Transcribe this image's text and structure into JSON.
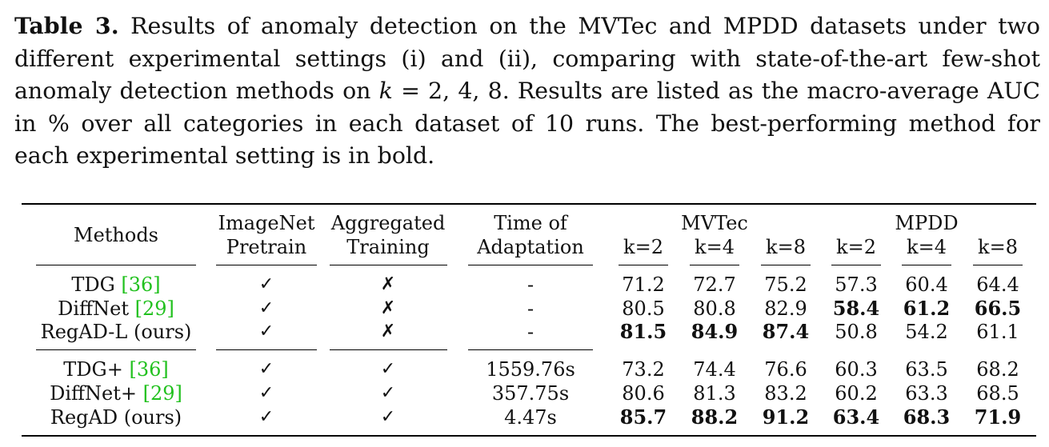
{
  "caption": {
    "label": "Table 3.",
    "text_a": " Results of anomaly detection on the MVTec and MPDD datasets under two different experimental settings (i) and (ii), comparing with state-of-the-art few-shot anomaly detection methods on ",
    "k_symbol": "k",
    "text_b": " = 2, 4, 8. Results are listed as the macro-average AUC in % over all categories in each dataset of 10 runs. The best-performing method for each experimental setting is in bold."
  },
  "headers": {
    "methods": "Methods",
    "imagenet_line1": "ImageNet",
    "imagenet_line2": "Pretrain",
    "aggregated_line1": "Aggregated",
    "aggregated_line2": "Training",
    "time_line1": "Time of",
    "time_line2": "Adaptation",
    "mvtec": "MVTec",
    "mpdd": "MPDD",
    "k_labels": [
      "k=2",
      "k=4",
      "k=8",
      "k=2",
      "k=4",
      "k=8"
    ]
  },
  "symbols": {
    "check": "✓",
    "cross": "✗"
  },
  "rows": [
    {
      "name": "TDG ",
      "ref": "[36]",
      "pretrain": "✓",
      "aggregated": "✗",
      "time": "-",
      "values": [
        "71.2",
        "72.7",
        "75.2",
        "57.3",
        "60.4",
        "64.4"
      ],
      "bold": [
        false,
        false,
        false,
        false,
        false,
        false
      ]
    },
    {
      "name": "DiffNet ",
      "ref": "[29]",
      "pretrain": "✓",
      "aggregated": "✗",
      "time": "-",
      "values": [
        "80.5",
        "80.8",
        "82.9",
        "58.4",
        "61.2",
        "66.5"
      ],
      "bold": [
        false,
        false,
        false,
        true,
        true,
        true
      ]
    },
    {
      "name": "RegAD-L (ours)",
      "ref": "",
      "pretrain": "✓",
      "aggregated": "✗",
      "time": "-",
      "values": [
        "81.5",
        "84.9",
        "87.4",
        "50.8",
        "54.2",
        "61.1"
      ],
      "bold": [
        true,
        true,
        true,
        false,
        false,
        false
      ]
    },
    {
      "name": "TDG+ ",
      "ref": "[36]",
      "pretrain": "✓",
      "aggregated": "✓",
      "time": "1559.76s",
      "values": [
        "73.2",
        "74.4",
        "76.6",
        "60.3",
        "63.5",
        "68.2"
      ],
      "bold": [
        false,
        false,
        false,
        false,
        false,
        false
      ]
    },
    {
      "name": "DiffNet+ ",
      "ref": "[29]",
      "pretrain": "✓",
      "aggregated": "✓",
      "time": "357.75s",
      "values": [
        "80.6",
        "81.3",
        "83.2",
        "60.2",
        "63.3",
        "68.5"
      ],
      "bold": [
        false,
        false,
        false,
        false,
        false,
        false
      ]
    },
    {
      "name": "RegAD (ours)",
      "ref": "",
      "pretrain": "✓",
      "aggregated": "✓",
      "time": "4.47s",
      "values": [
        "85.7",
        "88.2",
        "91.2",
        "63.4",
        "68.3",
        "71.9"
      ],
      "bold": [
        true,
        true,
        true,
        true,
        true,
        true
      ]
    }
  ]
}
